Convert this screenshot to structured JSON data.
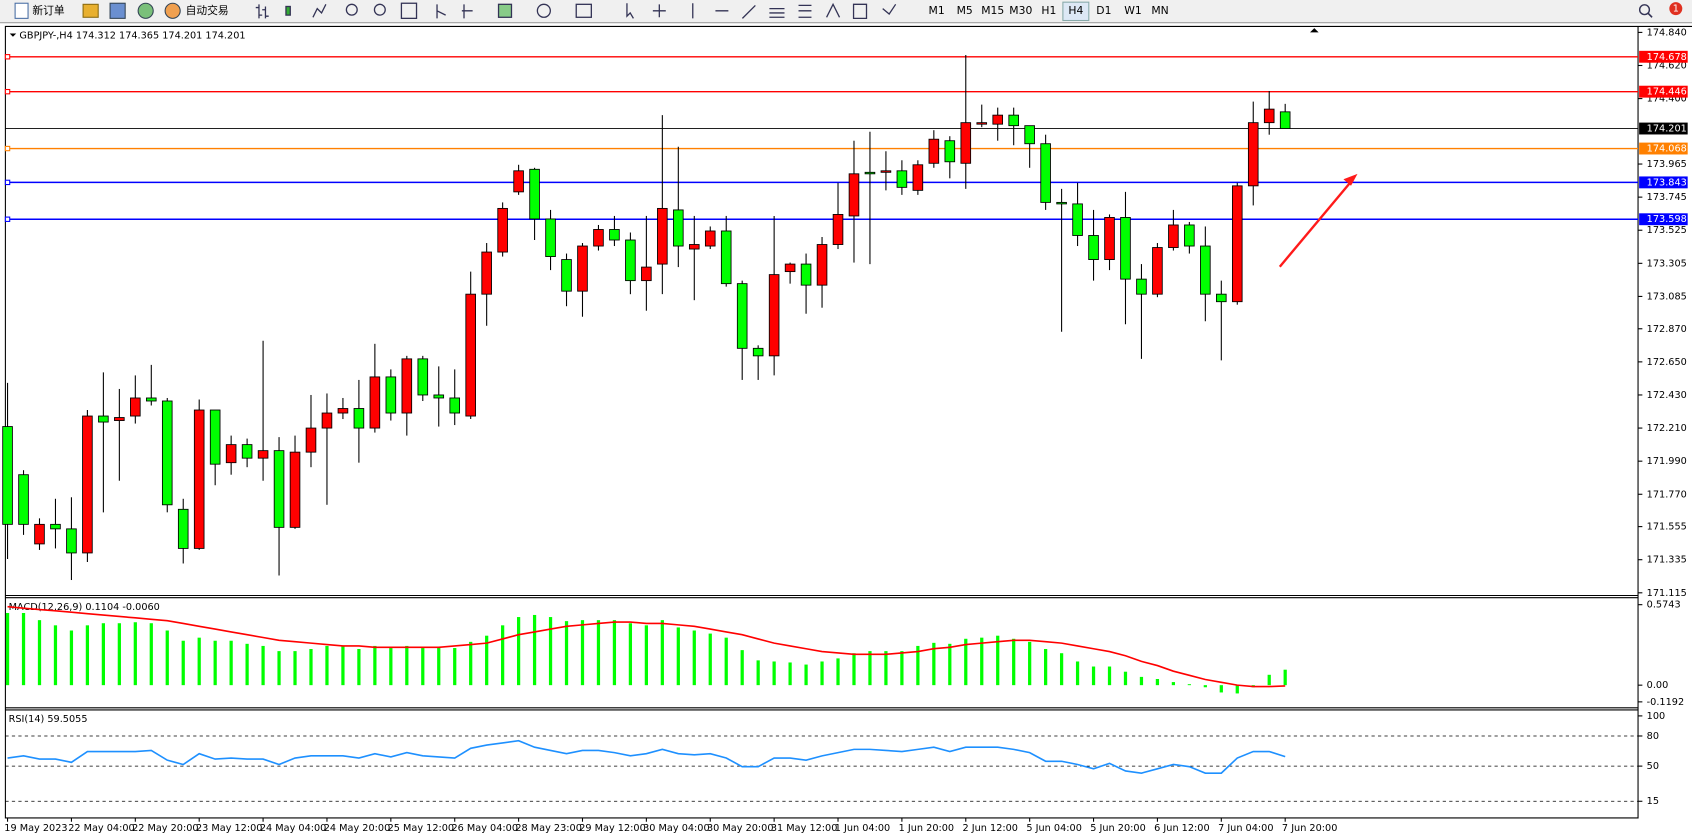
{
  "toolbar": {
    "new_order": "新订单",
    "auto_trading": "自动交易",
    "timeframes": [
      "M1",
      "M5",
      "M15",
      "M30",
      "H1",
      "H4",
      "D1",
      "W1",
      "MN"
    ],
    "alerts": 1
  },
  "chart_data": [
    {
      "type": "candlestick",
      "title": "GBPJPY-,H4 174.312 174.365 174.201 174.201",
      "categories": [
        "19 May 2023",
        null,
        null,
        null,
        "22 May 04:00",
        null,
        null,
        null,
        "22 May 20:00",
        null,
        null,
        null,
        "23 May 12:00",
        null,
        null,
        null,
        "24 May 04:00",
        null,
        null,
        null,
        "24 May 20:00",
        null,
        null,
        null,
        "25 May 12:00",
        null,
        null,
        null,
        "26 May 04:00",
        null,
        null,
        null,
        "28 May 23:00",
        null,
        null,
        null,
        "29 May 12:00",
        null,
        null,
        null,
        "30 May 04:00",
        null,
        null,
        null,
        "30 May 20:00",
        null,
        null,
        null,
        "31 May 12:00",
        null,
        null,
        null,
        "1 Jun 04:00",
        null,
        null,
        null,
        "1 Jun 20:00",
        null,
        null,
        null,
        "2 Jun 12:00",
        null,
        null,
        null,
        "5 Jun 04:00",
        null,
        null,
        null,
        "5 Jun 20:00",
        null,
        null,
        null,
        "6 Jun 12:00",
        null,
        null,
        null,
        "7 Jun 04:00",
        null,
        null,
        null,
        "7 Jun 20:00"
      ],
      "open": [
        172.22,
        171.9,
        171.44,
        171.57,
        171.54,
        171.38,
        172.29,
        172.26,
        172.29,
        172.41,
        172.39,
        171.67,
        171.41,
        172.33,
        171.98,
        172.1,
        172.01,
        172.06,
        171.55,
        172.05,
        172.21,
        172.31,
        172.34,
        172.21,
        172.55,
        172.31,
        172.67,
        172.43,
        172.41,
        172.29,
        173.1,
        173.38,
        173.78,
        173.93,
        173.6,
        173.33,
        173.12,
        173.42,
        173.53,
        173.46,
        173.19,
        173.3,
        173.66,
        173.4,
        173.42,
        173.52,
        173.17,
        172.74,
        172.69,
        173.25,
        173.3,
        173.16,
        173.43,
        173.62,
        173.91,
        173.91,
        173.92,
        173.79,
        173.97,
        174.12,
        173.97,
        174.23,
        174.23,
        174.29,
        174.22,
        174.1,
        173.71,
        173.7,
        173.49,
        173.33,
        173.61,
        173.2,
        173.1,
        173.41,
        173.56,
        173.42,
        173.1,
        173.05,
        173.82,
        174.24,
        174.312
      ],
      "high": [
        172.51,
        171.93,
        171.61,
        171.74,
        171.75,
        172.33,
        172.58,
        172.47,
        172.56,
        172.63,
        172.41,
        171.74,
        172.4,
        172.33,
        172.16,
        172.14,
        172.79,
        172.15,
        172.16,
        172.43,
        172.44,
        172.41,
        172.53,
        172.77,
        172.6,
        172.69,
        172.69,
        172.62,
        172.6,
        173.25,
        173.44,
        173.71,
        173.96,
        173.94,
        173.66,
        173.37,
        173.44,
        173.56,
        173.62,
        173.51,
        173.62,
        174.29,
        174.08,
        173.62,
        173.55,
        173.62,
        173.19,
        172.76,
        173.62,
        173.31,
        173.37,
        173.48,
        173.84,
        174.12,
        174.18,
        174.05,
        173.99,
        173.99,
        174.19,
        174.15,
        174.69,
        174.36,
        174.34,
        174.34,
        174.22,
        174.16,
        173.8,
        173.84,
        173.66,
        173.63,
        173.78,
        173.3,
        173.44,
        173.66,
        173.58,
        173.55,
        173.19,
        173.84,
        174.38,
        174.45,
        174.365
      ],
      "low": [
        171.34,
        171.5,
        171.4,
        171.41,
        171.2,
        171.32,
        171.65,
        171.86,
        172.24,
        172.36,
        171.65,
        171.31,
        171.4,
        171.83,
        171.9,
        171.95,
        171.86,
        171.23,
        171.54,
        171.95,
        171.7,
        172.27,
        171.98,
        172.18,
        172.26,
        172.16,
        172.39,
        172.22,
        172.23,
        172.27,
        172.89,
        173.35,
        173.76,
        173.46,
        173.26,
        173.02,
        172.95,
        173.39,
        173.42,
        173.1,
        172.99,
        173.1,
        173.28,
        173.06,
        173.4,
        173.15,
        172.53,
        172.53,
        172.56,
        173.17,
        172.97,
        173.01,
        173.4,
        173.31,
        173.3,
        173.79,
        173.76,
        173.76,
        173.94,
        173.87,
        173.8,
        174.21,
        174.12,
        174.09,
        173.94,
        173.66,
        172.85,
        173.42,
        173.19,
        173.26,
        172.9,
        172.67,
        173.08,
        173.39,
        173.37,
        172.92,
        172.66,
        173.03,
        173.69,
        174.16,
        174.201
      ],
      "close": [
        171.57,
        171.57,
        171.57,
        171.54,
        171.38,
        172.29,
        172.25,
        172.28,
        172.41,
        172.39,
        171.7,
        171.41,
        172.33,
        171.97,
        172.1,
        172.01,
        172.06,
        171.55,
        172.05,
        172.21,
        172.31,
        172.34,
        172.21,
        172.55,
        172.31,
        172.67,
        172.43,
        172.41,
        172.31,
        173.1,
        173.38,
        173.67,
        173.92,
        173.6,
        173.35,
        173.12,
        173.42,
        173.53,
        173.46,
        173.19,
        173.28,
        173.67,
        173.42,
        173.43,
        173.52,
        173.17,
        172.74,
        172.69,
        173.23,
        173.3,
        173.16,
        173.43,
        173.63,
        173.9,
        173.9,
        173.92,
        173.81,
        173.96,
        174.13,
        173.98,
        174.24,
        174.24,
        174.29,
        174.22,
        174.1,
        173.71,
        173.7,
        173.49,
        173.33,
        173.61,
        173.2,
        173.1,
        173.41,
        173.56,
        173.42,
        173.1,
        173.05,
        173.82,
        174.24,
        174.33,
        174.201
      ],
      "up_color": "#ff0000",
      "down_color": "#00ff00",
      "ylim": [
        171.115,
        174.84
      ],
      "yticks": [
        {
          "value": 174.84,
          "label": "174.840"
        },
        {
          "value": 174.62,
          "label": "174.620"
        },
        {
          "value": 174.4,
          "label": "174.400"
        },
        173.965,
        173.745,
        173.525,
        173.305,
        173.085,
        {
          "value": 172.87,
          "label": "172.870"
        },
        {
          "value": 172.65,
          "label": "172.650"
        },
        {
          "value": 172.43,
          "label": "172.430"
        },
        {
          "value": 172.21,
          "label": "172.210"
        },
        {
          "value": 171.99,
          "label": "171.990"
        },
        {
          "value": 171.77,
          "label": "171.770"
        },
        171.555,
        171.335,
        171.115
      ],
      "levels": [
        174.678,
        174.446,
        174.068,
        173.843,
        173.598
      ],
      "level_colors": [
        "#ff0000",
        "#ff0000",
        "#ff8000",
        "#0000ff",
        "#0000ff"
      ]
    },
    {
      "type": "macd",
      "title": "MACD(12,26,9) 0.1104 -0.0060",
      "histogram": [
        0.515,
        0.515,
        0.464,
        0.427,
        0.39,
        0.427,
        0.442,
        0.442,
        0.449,
        0.442,
        0.39,
        0.317,
        0.339,
        0.317,
        0.317,
        0.295,
        0.28,
        0.243,
        0.243,
        0.258,
        0.28,
        0.28,
        0.258,
        0.28,
        0.265,
        0.28,
        0.265,
        0.265,
        0.265,
        0.309,
        0.353,
        0.427,
        0.486,
        0.501,
        0.486,
        0.457,
        0.464,
        0.464,
        0.464,
        0.442,
        0.427,
        0.464,
        0.412,
        0.39,
        0.368,
        0.339,
        0.25,
        0.177,
        0.169,
        0.162,
        0.147,
        0.169,
        0.191,
        0.228,
        0.243,
        0.243,
        0.243,
        0.28,
        0.302,
        0.295,
        0.331,
        0.339,
        0.353,
        0.331,
        0.309,
        0.258,
        0.228,
        0.169,
        0.133,
        0.133,
        0.096,
        0.059,
        0.044,
        0.022,
        0.007,
        -0.015,
        -0.052,
        -0.059,
        -0.015,
        0.074,
        0.1104
      ],
      "signal": [
        0.56,
        0.55,
        0.54,
        0.53,
        0.52,
        0.51,
        0.5,
        0.49,
        0.48,
        0.47,
        0.46,
        0.44,
        0.42,
        0.4,
        0.38,
        0.36,
        0.34,
        0.32,
        0.31,
        0.3,
        0.29,
        0.28,
        0.28,
        0.27,
        0.27,
        0.27,
        0.27,
        0.27,
        0.28,
        0.29,
        0.3,
        0.33,
        0.36,
        0.38,
        0.4,
        0.42,
        0.43,
        0.44,
        0.45,
        0.45,
        0.44,
        0.44,
        0.43,
        0.42,
        0.4,
        0.38,
        0.36,
        0.33,
        0.3,
        0.28,
        0.26,
        0.24,
        0.23,
        0.22,
        0.22,
        0.22,
        0.23,
        0.24,
        0.26,
        0.27,
        0.29,
        0.3,
        0.31,
        0.32,
        0.32,
        0.31,
        0.3,
        0.28,
        0.26,
        0.24,
        0.21,
        0.17,
        0.14,
        0.1,
        0.07,
        0.04,
        0.02,
        0.0,
        -0.01,
        -0.01,
        -0.006
      ],
      "histogram_color": "#00ff00",
      "signal_color": "#ff0000",
      "ylim": [
        -0.1192,
        0.5743
      ],
      "yticks": [
        0.5743,
        {
          "value": 0,
          "label": "0.00"
        },
        -0.1192
      ]
    },
    {
      "type": "rsi",
      "title": "RSI(14) 59.5055",
      "values": [
        58.1,
        60.2,
        57.0,
        57.0,
        53.8,
        64.5,
        64.5,
        64.5,
        64.5,
        65.6,
        55.9,
        51.6,
        62.4,
        57.0,
        58.1,
        57.0,
        57.0,
        51.6,
        58.1,
        60.2,
        60.2,
        60.2,
        58.1,
        62.4,
        59.1,
        63.4,
        60.2,
        59.1,
        58.1,
        67.7,
        71.0,
        73.1,
        75.3,
        68.8,
        65.6,
        62.4,
        65.6,
        65.6,
        63.4,
        60.2,
        62.4,
        66.7,
        62.4,
        61.3,
        62.4,
        58.1,
        49.5,
        49.5,
        58.1,
        58.1,
        55.9,
        60.2,
        63.4,
        66.7,
        66.7,
        65.6,
        64.5,
        66.7,
        68.8,
        64.5,
        68.8,
        68.8,
        68.8,
        66.7,
        63.4,
        54.8,
        54.8,
        51.6,
        47.3,
        52.7,
        45.2,
        43.0,
        47.3,
        51.6,
        49.5,
        43.0,
        43.0,
        58.1,
        64.5,
        64.5,
        59.5055
      ],
      "color": "#1e90ff",
      "ylim": [
        0,
        100
      ],
      "yticks": [
        100,
        80,
        50,
        15
      ]
    }
  ]
}
